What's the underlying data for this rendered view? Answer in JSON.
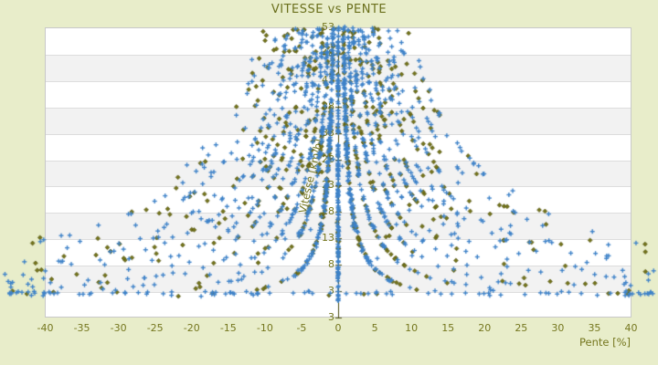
{
  "colors": {
    "background": "#e8edca",
    "plot_background": "#ffffff",
    "band_alt": "#f2f2f2",
    "gridline": "#dddddd",
    "plot_border": "#c8c8c8",
    "axis_line": "#4c4e10",
    "label_text": "#75771f",
    "title_text": "#6b701d",
    "series_blue": "#3e82c8",
    "series_olive": "#74741a",
    "series_olive_outline": "#4f500e"
  },
  "chart_data": {
    "type": "scatter",
    "title": "VITESSE vs PENTE",
    "xlabel": "Pente [%]",
    "ylabel": "Vitesse [km/h]",
    "xlim": [
      -40,
      40
    ],
    "x_ticks": [
      -40,
      -35,
      -30,
      -25,
      -20,
      -15,
      -10,
      -5,
      0,
      5,
      10,
      15,
      20,
      25,
      30,
      35,
      40
    ],
    "y_ticks": [
      53,
      48,
      43,
      38,
      33,
      28,
      23,
      18,
      13,
      8,
      3
    ],
    "y_axis_end_label": "3",
    "grid": "horizontal-bands-alternating",
    "legend": "none",
    "series": [
      {
        "name": "serie-1",
        "marker": "plus",
        "color": "#3e82c8"
      },
      {
        "name": "serie-2",
        "marker": "diamond",
        "color": "#74741a",
        "outline": "#4f500e"
      }
    ],
    "structure": {
      "description": "speed vs slope scatter: symmetric hyperbolic traces v=c/|p|, dense vertical strip at p=0, baseline row near v=2.6 spanning beyond both axis ends, sparse noise between traces",
      "hyperbola_curves": {
        "constants": [
          36,
          72,
          108,
          144,
          180,
          216,
          252,
          288,
          324,
          360,
          432,
          504
        ],
        "sides": [
          -1,
          1
        ],
        "v_range": [
          3.2,
          53
        ],
        "p_limit": 43,
        "blue_base_count": 150,
        "density_falloff_exponent": 0.8,
        "olive_fraction": 0.45,
        "jitter_p": 0.15,
        "jitter_v": 0.3
      },
      "zero_slope_strip": {
        "blue_count": 170,
        "olive_count": 18,
        "v_range": [
          0.3,
          53
        ],
        "p_sigma": 0.08
      },
      "baseline_band": {
        "v_center": 2.6,
        "v_sigma": 0.4,
        "p_range": [
          -45.5,
          45.5
        ],
        "blue_count": 95,
        "olive_count": 10
      },
      "edge_clusters": [
        {
          "p_range": [
            -45.5,
            -37
          ],
          "v_range": [
            2,
            9
          ],
          "blue_count": 14,
          "olive_count": 2
        },
        {
          "p_range": [
            37,
            45.5
          ],
          "v_range": [
            2,
            7
          ],
          "blue_count": 12,
          "olive_count": 2
        }
      ],
      "random_scatter": {
        "count": 150,
        "c_range": [
          15,
          560
        ],
        "v_min": 3.0,
        "blue_fraction": 0.45
      }
    }
  }
}
